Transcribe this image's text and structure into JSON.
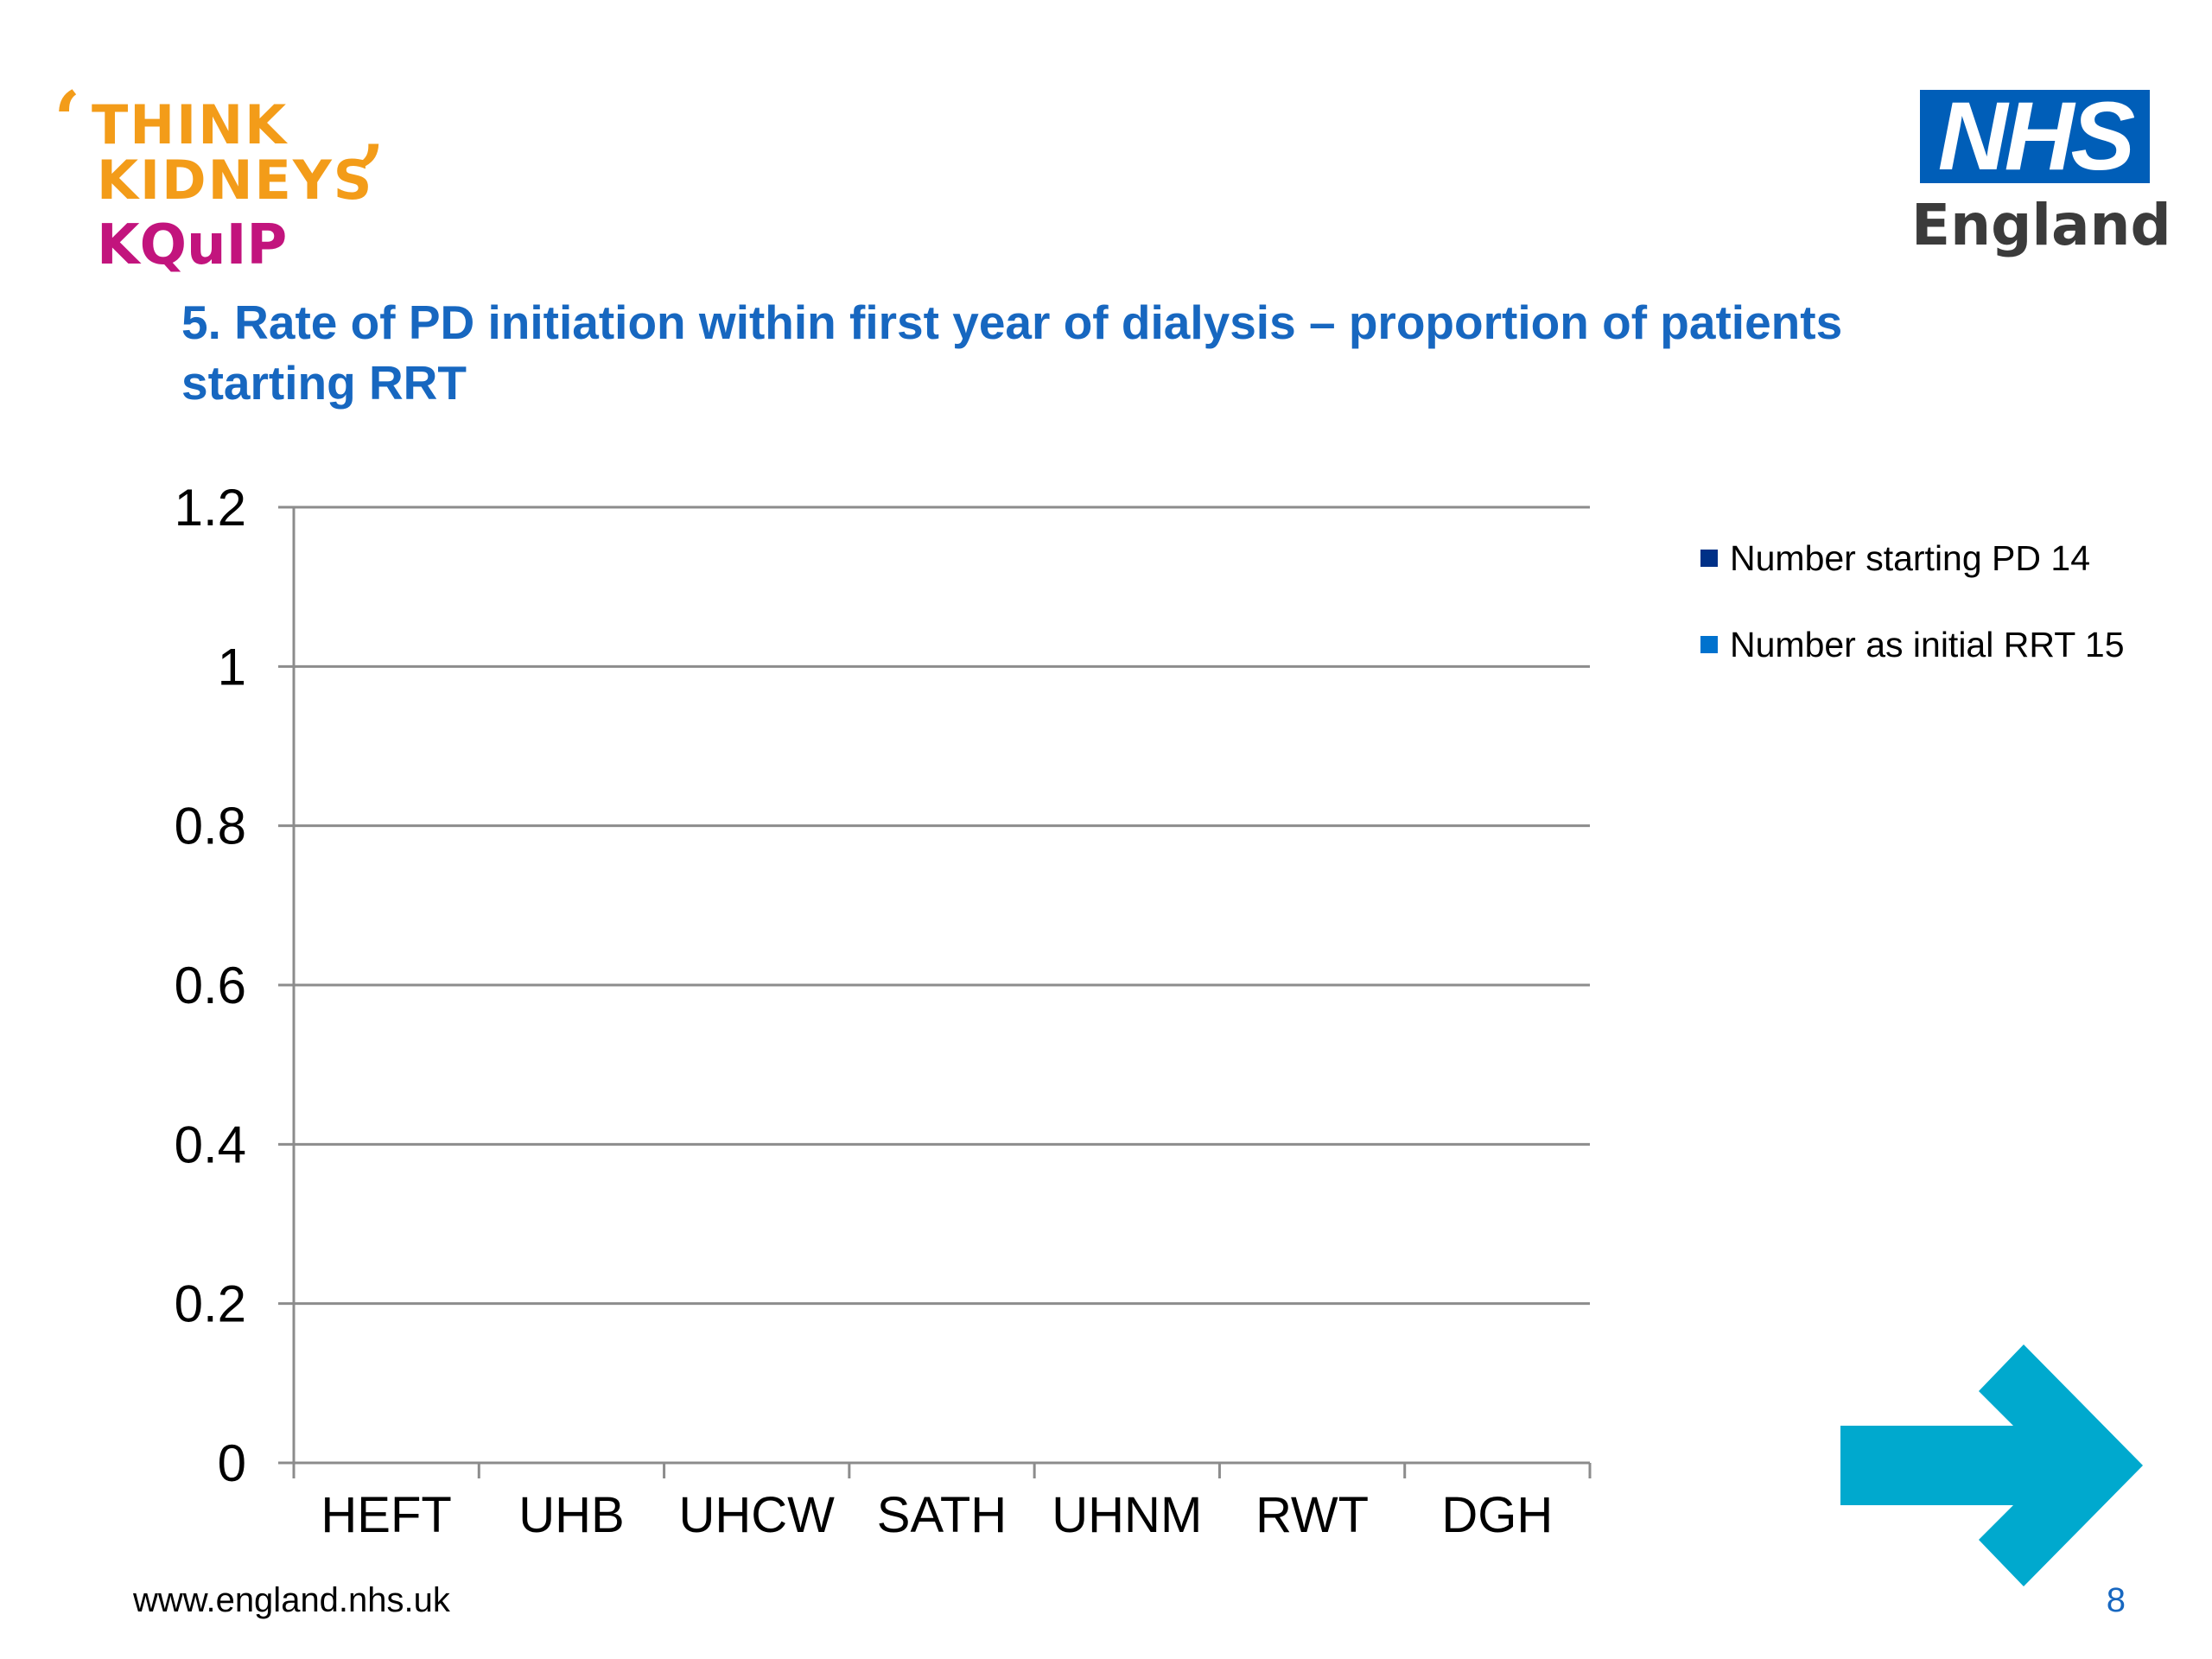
{
  "logos": {
    "think_kidneys_line1": "THINK",
    "think_kidneys_line2": "KIDNEYS",
    "kquip": "KQuIP",
    "nhs": "NHS",
    "nhs_region": "England"
  },
  "slide_title": "5.  Rate of PD initiation within first year of dialysis – proportion of patients starting RRT",
  "chart_data": {
    "type": "bar",
    "title": "",
    "xlabel": "",
    "ylabel": "",
    "categories": [
      "HEFT",
      "UHB",
      "UHCW",
      "SATH",
      "UHNM",
      "RWT",
      "DGH"
    ],
    "series": [
      {
        "name": "Number starting PD 14",
        "color": "#003087",
        "values": [
          null,
          null,
          null,
          null,
          null,
          null,
          null
        ]
      },
      {
        "name": "Number as initial RRT 15",
        "color": "#0072ce",
        "values": [
          null,
          null,
          null,
          null,
          null,
          null,
          null
        ]
      }
    ],
    "ylim": [
      0,
      1.2
    ],
    "yticks": [
      "0",
      "0.2",
      "0.4",
      "0.6",
      "0.8",
      "1",
      "1.2"
    ],
    "grid": true,
    "legend": "right"
  },
  "footer": {
    "url": "www.england.nhs.uk",
    "page_number": "8"
  },
  "colors": {
    "title": "#1767c0",
    "arrow": "#00a9ce",
    "nhs_blue": "#005eb8",
    "think_orange": "#f39c19",
    "kquip_magenta": "#c2147d"
  },
  "icons": {
    "next": "arrow-right-icon"
  }
}
